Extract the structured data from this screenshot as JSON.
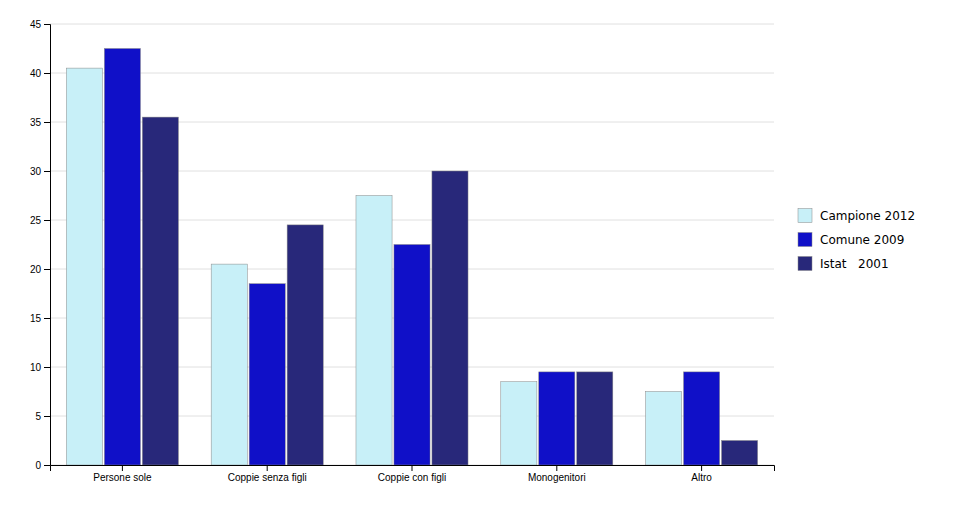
{
  "chart_data": {
    "type": "bar",
    "categories": [
      "Persone sole",
      "Coppie senza figli",
      "Coppie con figli",
      "Monogenitori",
      "Altro"
    ],
    "series": [
      {
        "name": "Campione 2012",
        "color": "#c8f0f8",
        "values": [
          40.5,
          20.5,
          27.5,
          8.5,
          7.5
        ]
      },
      {
        "name": "Comune 2009",
        "color": "#1010c8",
        "values": [
          42.5,
          18.5,
          22.5,
          9.5,
          9.5
        ]
      },
      {
        "name": "Istat   2001",
        "color": "#28287a",
        "values": [
          35.5,
          24.5,
          30.0,
          9.5,
          2.5
        ]
      }
    ],
    "ylim": [
      0,
      45
    ],
    "yticks": [
      0,
      5,
      10,
      15,
      20,
      25,
      30,
      35,
      40,
      45
    ],
    "grid": true,
    "legend": "right"
  }
}
